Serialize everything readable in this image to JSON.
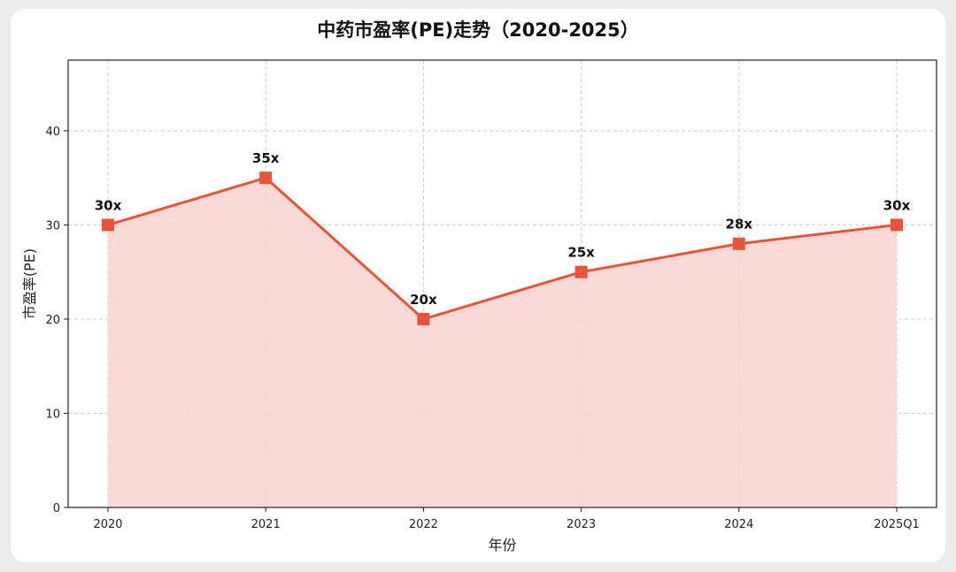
{
  "chart_data": {
    "type": "area",
    "title": "中药市盈率(PE)走势（2020-2025）",
    "xlabel": "年份",
    "ylabel": "市盈率(PE)",
    "categories": [
      "2020",
      "2021",
      "2022",
      "2023",
      "2024",
      "2025Q1"
    ],
    "series": [
      {
        "values": [
          30,
          35,
          20,
          25,
          28,
          30
        ]
      }
    ],
    "data_labels": [
      "30x",
      "35x",
      "20x",
      "25x",
      "28x",
      "30x"
    ],
    "ylim": [
      0,
      47.5
    ],
    "yticks": [
      0,
      10,
      20,
      30,
      40
    ],
    "grid": true,
    "colors": {
      "line": "#e8533a",
      "fill": "#f8d6d2",
      "marker": "#e8533a"
    },
    "marker": "square"
  }
}
